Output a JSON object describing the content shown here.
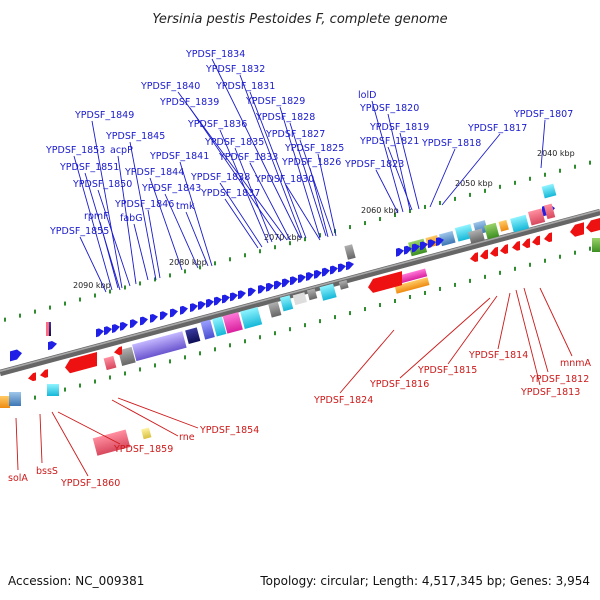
{
  "title": "Yersinia pestis Pestoides F, complete genome",
  "footer": {
    "accession": "Accession: NC_009381",
    "summary": "Topology: circular; Length: 4,517,345 bp; Genes: 3,954"
  },
  "ticks": [
    "2040 kbp",
    "2050 kbp",
    "2060 kbp",
    "2070 kbp",
    "2080 kbp",
    "2090 kbp"
  ],
  "forward_labels": [
    "YPDSF_1834",
    "YPDSF_1832",
    "YPDSF_1840",
    "YPDSF_1831",
    "YPDSF_1839",
    "YPDSF_1829",
    "YPDSF_1849",
    "YPDSF_1836",
    "YPDSF_1828",
    "YPDSF_1845",
    "YPDSF_1835",
    "YPDSF_1827",
    "YPDSF_1853",
    "acpP",
    "YPDSF_1841",
    "YPDSF_1833",
    "YPDSF_1825",
    "YPDSF_1851",
    "YPDSF_1844",
    "YPDSF_1826",
    "YPDSF_1850",
    "YPDSF_1843",
    "YPDSF_1838",
    "YPDSF_1830",
    "YPDSF_1837",
    "rpmF",
    "YPDSF_1846",
    "tmk",
    "fabG",
    "YPDSF_1855",
    "lolD",
    "YPDSF_1820",
    "YPDSF_1819",
    "YPDSF_1821",
    "YPDSF_1818",
    "YPDSF_1823",
    "YPDSF_1817",
    "YPDSF_1807"
  ],
  "reverse_labels": [
    "YPDSF_1824",
    "YPDSF_1816",
    "YPDSF_1815",
    "YPDSF_1814",
    "mnmA",
    "YPDSF_1812",
    "YPDSF_1813",
    "YPDSF_1854",
    "rne",
    "YPDSF_1859",
    "solA",
    "bssS",
    "YPDSF_1860"
  ],
  "colors": {
    "forward_label": "#1a1acc",
    "reverse_label": "#cc1a1a",
    "forward_arrow": "#1f1fe6",
    "reverse_arrow": "#ee1111",
    "backbone": "#7a7a7a",
    "tick_mark": "#2e8b2e"
  }
}
